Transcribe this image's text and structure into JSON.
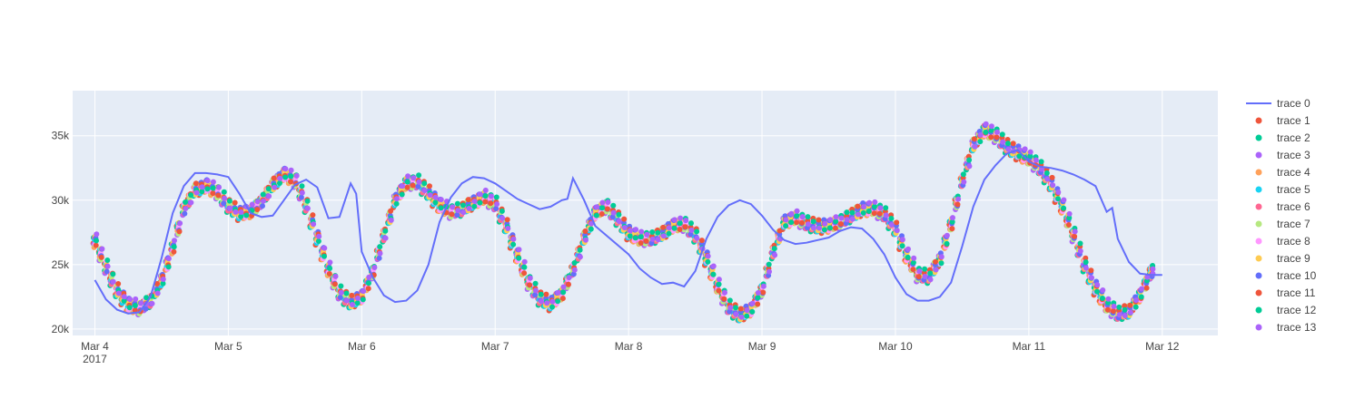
{
  "chart_data": {
    "type": "scatter",
    "title": "",
    "xlabel": "",
    "ylabel": "",
    "x_range": [
      "2017-03-03T20:00",
      "2017-03-12T10:00"
    ],
    "ylim": [
      19500,
      38500
    ],
    "grid": true,
    "legend_position": "right",
    "plot_background": "#e5ecf6",
    "x_ticks": [
      {
        "date": "2017-03-04",
        "label": "Mar 4",
        "sublabel": "2017"
      },
      {
        "date": "2017-03-05",
        "label": "Mar 5",
        "sublabel": ""
      },
      {
        "date": "2017-03-06",
        "label": "Mar 6",
        "sublabel": ""
      },
      {
        "date": "2017-03-07",
        "label": "Mar 7",
        "sublabel": ""
      },
      {
        "date": "2017-03-08",
        "label": "Mar 8",
        "sublabel": ""
      },
      {
        "date": "2017-03-09",
        "label": "Mar 9",
        "sublabel": ""
      },
      {
        "date": "2017-03-10",
        "label": "Mar 10",
        "sublabel": ""
      },
      {
        "date": "2017-03-11",
        "label": "Mar 11",
        "sublabel": ""
      },
      {
        "date": "2017-03-12",
        "label": "Mar 12",
        "sublabel": ""
      }
    ],
    "y_ticks": [
      {
        "value": 20000,
        "label": "20k"
      },
      {
        "value": 25000,
        "label": "25k"
      },
      {
        "value": 30000,
        "label": "30k"
      },
      {
        "value": 35000,
        "label": "35k"
      }
    ],
    "line_series": {
      "name": "trace 0",
      "color": "#636efa",
      "points": [
        [
          "2017-03-04T00:00",
          23800
        ],
        [
          "2017-03-04T02:00",
          22300
        ],
        [
          "2017-03-04T04:00",
          21500
        ],
        [
          "2017-03-04T06:00",
          21200
        ],
        [
          "2017-03-04T08:00",
          21300
        ],
        [
          "2017-03-04T10:00",
          22500
        ],
        [
          "2017-03-04T12:00",
          25500
        ],
        [
          "2017-03-04T14:00",
          29000
        ],
        [
          "2017-03-04T16:00",
          31100
        ],
        [
          "2017-03-04T18:00",
          32100
        ],
        [
          "2017-03-04T20:00",
          32100
        ],
        [
          "2017-03-04T22:00",
          32000
        ],
        [
          "2017-03-05T00:00",
          31800
        ],
        [
          "2017-03-05T02:00",
          30500
        ],
        [
          "2017-03-05T04:00",
          29000
        ],
        [
          "2017-03-05T06:00",
          28700
        ],
        [
          "2017-03-05T08:00",
          28800
        ],
        [
          "2017-03-05T10:00",
          30000
        ],
        [
          "2017-03-05T12:00",
          31200
        ],
        [
          "2017-03-05T14:00",
          31600
        ],
        [
          "2017-03-05T16:00",
          31000
        ],
        [
          "2017-03-05T18:00",
          28600
        ],
        [
          "2017-03-05T20:00",
          28700
        ],
        [
          "2017-03-05T22:00",
          31300
        ],
        [
          "2017-03-05T23:00",
          30500
        ],
        [
          "2017-03-06T00:00",
          26000
        ],
        [
          "2017-03-06T02:00",
          24000
        ],
        [
          "2017-03-06T04:00",
          22600
        ],
        [
          "2017-03-06T06:00",
          22100
        ],
        [
          "2017-03-06T08:00",
          22200
        ],
        [
          "2017-03-06T10:00",
          23000
        ],
        [
          "2017-03-06T12:00",
          25000
        ],
        [
          "2017-03-06T14:00",
          28300
        ],
        [
          "2017-03-06T16:00",
          30200
        ],
        [
          "2017-03-06T18:00",
          31300
        ],
        [
          "2017-03-06T20:00",
          31800
        ],
        [
          "2017-03-06T22:00",
          31700
        ],
        [
          "2017-03-07T00:00",
          31300
        ],
        [
          "2017-03-07T02:00",
          30700
        ],
        [
          "2017-03-07T04:00",
          30100
        ],
        [
          "2017-03-07T06:00",
          29700
        ],
        [
          "2017-03-07T08:00",
          29300
        ],
        [
          "2017-03-07T10:00",
          29500
        ],
        [
          "2017-03-07T12:00",
          30000
        ],
        [
          "2017-03-07T13:00",
          30100
        ],
        [
          "2017-03-07T14:00",
          31700
        ],
        [
          "2017-03-07T16:00",
          30000
        ],
        [
          "2017-03-07T18:00",
          28000
        ],
        [
          "2017-03-08T00:00",
          25800
        ],
        [
          "2017-03-08T02:00",
          24700
        ],
        [
          "2017-03-08T04:00",
          24000
        ],
        [
          "2017-03-08T06:00",
          23500
        ],
        [
          "2017-03-08T08:00",
          23600
        ],
        [
          "2017-03-08T10:00",
          23300
        ],
        [
          "2017-03-08T12:00",
          24500
        ],
        [
          "2017-03-08T14:00",
          27000
        ],
        [
          "2017-03-08T16:00",
          28700
        ],
        [
          "2017-03-08T18:00",
          29600
        ],
        [
          "2017-03-08T20:00",
          30000
        ],
        [
          "2017-03-08T22:00",
          29700
        ],
        [
          "2017-03-09T00:00",
          28800
        ],
        [
          "2017-03-09T02:00",
          27700
        ],
        [
          "2017-03-09T04:00",
          26900
        ],
        [
          "2017-03-09T06:00",
          26600
        ],
        [
          "2017-03-09T08:00",
          26700
        ],
        [
          "2017-03-09T10:00",
          26900
        ],
        [
          "2017-03-09T12:00",
          27100
        ],
        [
          "2017-03-09T14:00",
          27600
        ],
        [
          "2017-03-09T16:00",
          27900
        ],
        [
          "2017-03-09T18:00",
          27800
        ],
        [
          "2017-03-09T20:00",
          27000
        ],
        [
          "2017-03-09T22:00",
          25800
        ],
        [
          "2017-03-10T00:00",
          24000
        ],
        [
          "2017-03-10T02:00",
          22700
        ],
        [
          "2017-03-10T04:00",
          22200
        ],
        [
          "2017-03-10T06:00",
          22200
        ],
        [
          "2017-03-10T08:00",
          22500
        ],
        [
          "2017-03-10T10:00",
          23600
        ],
        [
          "2017-03-10T12:00",
          26400
        ],
        [
          "2017-03-10T14:00",
          29500
        ],
        [
          "2017-03-10T16:00",
          31600
        ],
        [
          "2017-03-10T18:00",
          32700
        ],
        [
          "2017-03-10T20:00",
          33600
        ],
        [
          "2017-03-10T22:00",
          33900
        ],
        [
          "2017-03-11T00:00",
          33000
        ],
        [
          "2017-03-11T02:00",
          32600
        ],
        [
          "2017-03-11T04:00",
          32500
        ],
        [
          "2017-03-11T06:00",
          32300
        ],
        [
          "2017-03-11T08:00",
          32000
        ],
        [
          "2017-03-11T10:00",
          31600
        ],
        [
          "2017-03-11T12:00",
          31100
        ],
        [
          "2017-03-11T14:00",
          29100
        ],
        [
          "2017-03-11T15:00",
          29400
        ],
        [
          "2017-03-11T16:00",
          27000
        ],
        [
          "2017-03-11T18:00",
          25200
        ],
        [
          "2017-03-11T20:00",
          24300
        ],
        [
          "2017-03-11T22:00",
          24200
        ],
        [
          "2017-03-12T00:00",
          24200
        ]
      ]
    },
    "scatter_series": [
      {
        "name": "trace 1",
        "color": "#EF553B"
      },
      {
        "name": "trace 2",
        "color": "#00cc96"
      },
      {
        "name": "trace 3",
        "color": "#ab63fa"
      },
      {
        "name": "trace 4",
        "color": "#FFA15A"
      },
      {
        "name": "trace 5",
        "color": "#19d3f3"
      },
      {
        "name": "trace 6",
        "color": "#FF6692"
      },
      {
        "name": "trace 7",
        "color": "#B6E880"
      },
      {
        "name": "trace 8",
        "color": "#FF97FF"
      },
      {
        "name": "trace 9",
        "color": "#FECB52"
      },
      {
        "name": "trace 10",
        "color": "#636efa"
      },
      {
        "name": "trace 11",
        "color": "#EF553B"
      },
      {
        "name": "trace 12",
        "color": "#00cc96"
      },
      {
        "name": "trace 13",
        "color": "#ab63fa"
      }
    ],
    "scatter_profile": [
      [
        "2017-03-04T00:00",
        26800
      ],
      [
        "2017-03-04T02:00",
        24800
      ],
      [
        "2017-03-04T04:00",
        23000
      ],
      [
        "2017-03-04T06:00",
        21900
      ],
      [
        "2017-03-04T08:00",
        21600
      ],
      [
        "2017-03-04T10:00",
        22200
      ],
      [
        "2017-03-04T12:00",
        23800
      ],
      [
        "2017-03-04T14:00",
        26300
      ],
      [
        "2017-03-04T16:00",
        29300
      ],
      [
        "2017-03-04T18:00",
        30800
      ],
      [
        "2017-03-04T20:00",
        31100
      ],
      [
        "2017-03-04T22:00",
        30600
      ],
      [
        "2017-03-05T00:00",
        29600
      ],
      [
        "2017-03-05T02:00",
        29000
      ],
      [
        "2017-03-05T04:00",
        29100
      ],
      [
        "2017-03-05T06:00",
        29900
      ],
      [
        "2017-03-05T08:00",
        31200
      ],
      [
        "2017-03-05T10:00",
        32000
      ],
      [
        "2017-03-05T12:00",
        31500
      ],
      [
        "2017-03-05T14:00",
        29600
      ],
      [
        "2017-03-05T16:00",
        27100
      ],
      [
        "2017-03-05T18:00",
        24600
      ],
      [
        "2017-03-05T20:00",
        22800
      ],
      [
        "2017-03-05T22:00",
        22100
      ],
      [
        "2017-03-06T00:00",
        22500
      ],
      [
        "2017-03-06T02:00",
        24400
      ],
      [
        "2017-03-06T04:00",
        27300
      ],
      [
        "2017-03-06T06:00",
        30000
      ],
      [
        "2017-03-06T08:00",
        31300
      ],
      [
        "2017-03-06T10:00",
        31400
      ],
      [
        "2017-03-06T12:00",
        30600
      ],
      [
        "2017-03-06T14:00",
        29600
      ],
      [
        "2017-03-06T16:00",
        29100
      ],
      [
        "2017-03-06T18:00",
        29300
      ],
      [
        "2017-03-06T20:00",
        29800
      ],
      [
        "2017-03-06T22:00",
        30200
      ],
      [
        "2017-03-07T00:00",
        29700
      ],
      [
        "2017-03-07T02:00",
        28000
      ],
      [
        "2017-03-07T04:00",
        25700
      ],
      [
        "2017-03-07T06:00",
        23600
      ],
      [
        "2017-03-07T08:00",
        22400
      ],
      [
        "2017-03-07T10:00",
        22000
      ],
      [
        "2017-03-07T12:00",
        22700
      ],
      [
        "2017-03-07T14:00",
        24600
      ],
      [
        "2017-03-07T16:00",
        27100
      ],
      [
        "2017-03-07T18:00",
        29000
      ],
      [
        "2017-03-07T20:00",
        29500
      ],
      [
        "2017-03-07T22:00",
        28600
      ],
      [
        "2017-03-08T00:00",
        27500
      ],
      [
        "2017-03-08T02:00",
        27000
      ],
      [
        "2017-03-08T04:00",
        27000
      ],
      [
        "2017-03-08T06:00",
        27400
      ],
      [
        "2017-03-08T08:00",
        28000
      ],
      [
        "2017-03-08T10:00",
        28100
      ],
      [
        "2017-03-08T12:00",
        27300
      ],
      [
        "2017-03-08T14:00",
        25500
      ],
      [
        "2017-03-08T16:00",
        23300
      ],
      [
        "2017-03-08T18:00",
        21700
      ],
      [
        "2017-03-08T20:00",
        21100
      ],
      [
        "2017-03-08T22:00",
        21500
      ],
      [
        "2017-03-09T00:00",
        23000
      ],
      [
        "2017-03-09T02:00",
        26000
      ],
      [
        "2017-03-09T04:00",
        28300
      ],
      [
        "2017-03-09T06:00",
        28600
      ],
      [
        "2017-03-09T08:00",
        28200
      ],
      [
        "2017-03-09T10:00",
        28000
      ],
      [
        "2017-03-09T12:00",
        28000
      ],
      [
        "2017-03-09T14:00",
        28300
      ],
      [
        "2017-03-09T16:00",
        28800
      ],
      [
        "2017-03-09T18:00",
        29300
      ],
      [
        "2017-03-09T20:00",
        29300
      ],
      [
        "2017-03-09T22:00",
        28900
      ],
      [
        "2017-03-10T00:00",
        27800
      ],
      [
        "2017-03-10T02:00",
        25700
      ],
      [
        "2017-03-10T04:00",
        24200
      ],
      [
        "2017-03-10T06:00",
        24100
      ],
      [
        "2017-03-10T08:00",
        25400
      ],
      [
        "2017-03-10T10:00",
        28100
      ],
      [
        "2017-03-10T12:00",
        31500
      ],
      [
        "2017-03-10T14:00",
        34300
      ],
      [
        "2017-03-10T16:00",
        35400
      ],
      [
        "2017-03-10T18:00",
        35000
      ],
      [
        "2017-03-10T20:00",
        34200
      ],
      [
        "2017-03-10T22:00",
        33700
      ],
      [
        "2017-03-11T00:00",
        33200
      ],
      [
        "2017-03-11T02:00",
        32500
      ],
      [
        "2017-03-11T04:00",
        31300
      ],
      [
        "2017-03-11T06:00",
        29500
      ],
      [
        "2017-03-11T08:00",
        27300
      ],
      [
        "2017-03-11T10:00",
        25000
      ],
      [
        "2017-03-11T12:00",
        23200
      ],
      [
        "2017-03-11T14:00",
        21800
      ],
      [
        "2017-03-11T16:00",
        21200
      ],
      [
        "2017-03-11T18:00",
        21400
      ],
      [
        "2017-03-11T20:00",
        22600
      ],
      [
        "2017-03-11T22:00",
        24400
      ]
    ]
  },
  "legend": {
    "items": [
      "trace 0",
      "trace 1",
      "trace 2",
      "trace 3",
      "trace 4",
      "trace 5",
      "trace 6",
      "trace 7",
      "trace 8",
      "trace 9",
      "trace 10",
      "trace 11",
      "trace 12",
      "trace 13"
    ]
  }
}
